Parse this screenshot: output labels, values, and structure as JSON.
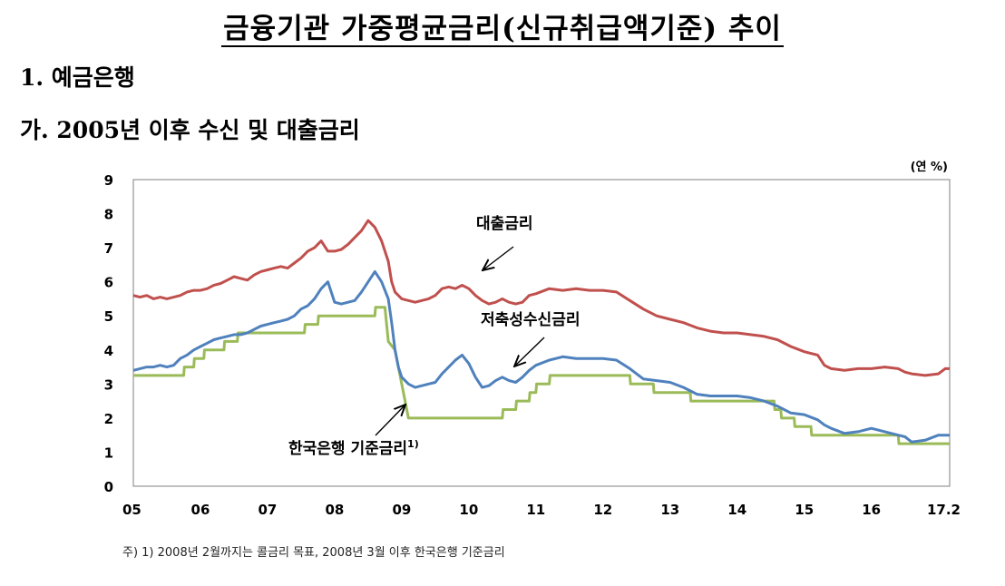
{
  "page": {
    "title": "금융기관 가중평균금리(신규취급액기준) 추이",
    "section": "1. 예금은행",
    "subsection": "가. 2005년 이후 수신 및 대출금리",
    "footnote": "주) 1) 2008년 2월까지는 콜금리 목표, 2008년 3월 이후 한국은행 기준금리"
  },
  "chart_data": {
    "type": "line",
    "unit": "(연 %)",
    "x_tick_labels": [
      "05",
      "06",
      "07",
      "08",
      "09",
      "10",
      "11",
      "12",
      "13",
      "14",
      "15",
      "16",
      "17.2"
    ],
    "y_ticks": [
      0,
      1,
      2,
      3,
      4,
      5,
      6,
      7,
      8,
      9
    ],
    "ylim": [
      0,
      9
    ],
    "xlim": [
      2005.0,
      2017.167
    ],
    "grid": false,
    "annotations": [
      {
        "text": "대출금리",
        "series": "대출금리"
      },
      {
        "text": "저축성수신금리",
        "series": "저축성수신금리"
      },
      {
        "text": "한국은행 기준금리1)",
        "series": "한국은행 기준금리"
      }
    ],
    "series": [
      {
        "name": "대출금리",
        "color": "#c0504d",
        "x": [
          2005.0,
          2005.1,
          2005.2,
          2005.3,
          2005.4,
          2005.5,
          2005.6,
          2005.7,
          2005.8,
          2005.9,
          2006.0,
          2006.1,
          2006.2,
          2006.3,
          2006.4,
          2006.5,
          2006.6,
          2006.7,
          2006.8,
          2006.9,
          2007.0,
          2007.1,
          2007.2,
          2007.3,
          2007.4,
          2007.5,
          2007.6,
          2007.7,
          2007.8,
          2007.9,
          2008.0,
          2008.1,
          2008.2,
          2008.3,
          2008.4,
          2008.5,
          2008.6,
          2008.7,
          2008.8,
          2008.85,
          2008.9,
          2009.0,
          2009.1,
          2009.2,
          2009.3,
          2009.4,
          2009.5,
          2009.6,
          2009.7,
          2009.8,
          2009.9,
          2010.0,
          2010.1,
          2010.2,
          2010.3,
          2010.4,
          2010.5,
          2010.6,
          2010.7,
          2010.8,
          2010.9,
          2011.0,
          2011.2,
          2011.4,
          2011.6,
          2011.8,
          2012.0,
          2012.2,
          2012.4,
          2012.6,
          2012.8,
          2013.0,
          2013.2,
          2013.4,
          2013.6,
          2013.8,
          2014.0,
          2014.2,
          2014.4,
          2014.6,
          2014.8,
          2015.0,
          2015.2,
          2015.3,
          2015.4,
          2015.6,
          2015.8,
          2016.0,
          2016.2,
          2016.4,
          2016.5,
          2016.6,
          2016.8,
          2017.0,
          2017.1,
          2017.167
        ],
        "values": [
          5.6,
          5.55,
          5.6,
          5.5,
          5.55,
          5.5,
          5.55,
          5.6,
          5.7,
          5.75,
          5.75,
          5.8,
          5.9,
          5.95,
          6.05,
          6.15,
          6.1,
          6.05,
          6.2,
          6.3,
          6.35,
          6.4,
          6.45,
          6.4,
          6.55,
          6.7,
          6.9,
          7.0,
          7.2,
          6.9,
          6.9,
          6.95,
          7.1,
          7.3,
          7.5,
          7.8,
          7.6,
          7.2,
          6.6,
          6.0,
          5.7,
          5.5,
          5.45,
          5.4,
          5.45,
          5.5,
          5.6,
          5.8,
          5.85,
          5.8,
          5.9,
          5.8,
          5.6,
          5.45,
          5.35,
          5.4,
          5.5,
          5.4,
          5.35,
          5.4,
          5.6,
          5.65,
          5.8,
          5.75,
          5.8,
          5.75,
          5.75,
          5.7,
          5.45,
          5.2,
          5.0,
          4.9,
          4.8,
          4.65,
          4.55,
          4.5,
          4.5,
          4.45,
          4.4,
          4.3,
          4.1,
          3.95,
          3.85,
          3.55,
          3.45,
          3.4,
          3.45,
          3.45,
          3.5,
          3.45,
          3.35,
          3.3,
          3.25,
          3.3,
          3.45,
          3.45
        ]
      },
      {
        "name": "저축성수신금리",
        "color": "#4f81bd",
        "x": [
          2005.0,
          2005.1,
          2005.2,
          2005.3,
          2005.4,
          2005.5,
          2005.6,
          2005.7,
          2005.8,
          2005.9,
          2006.0,
          2006.1,
          2006.2,
          2006.3,
          2006.4,
          2006.5,
          2006.6,
          2006.7,
          2006.8,
          2006.9,
          2007.0,
          2007.1,
          2007.2,
          2007.3,
          2007.4,
          2007.5,
          2007.6,
          2007.7,
          2007.8,
          2007.9,
          2008.0,
          2008.1,
          2008.2,
          2008.3,
          2008.4,
          2008.5,
          2008.6,
          2008.7,
          2008.8,
          2008.85,
          2008.9,
          2008.95,
          2009.0,
          2009.1,
          2009.2,
          2009.3,
          2009.4,
          2009.5,
          2009.6,
          2009.7,
          2009.8,
          2009.9,
          2010.0,
          2010.1,
          2010.2,
          2010.3,
          2010.4,
          2010.5,
          2010.6,
          2010.7,
          2010.8,
          2010.9,
          2011.0,
          2011.2,
          2011.4,
          2011.6,
          2011.8,
          2012.0,
          2012.2,
          2012.4,
          2012.6,
          2012.8,
          2013.0,
          2013.2,
          2013.4,
          2013.6,
          2013.8,
          2014.0,
          2014.2,
          2014.4,
          2014.6,
          2014.8,
          2015.0,
          2015.2,
          2015.3,
          2015.4,
          2015.6,
          2015.8,
          2016.0,
          2016.2,
          2016.4,
          2016.5,
          2016.6,
          2016.8,
          2017.0,
          2017.1,
          2017.167
        ],
        "values": [
          3.4,
          3.45,
          3.5,
          3.5,
          3.55,
          3.5,
          3.55,
          3.75,
          3.85,
          4.0,
          4.1,
          4.2,
          4.3,
          4.35,
          4.4,
          4.45,
          4.45,
          4.5,
          4.6,
          4.7,
          4.75,
          4.8,
          4.85,
          4.9,
          5.0,
          5.2,
          5.3,
          5.5,
          5.8,
          6.0,
          5.4,
          5.35,
          5.4,
          5.45,
          5.7,
          6.0,
          6.3,
          6.0,
          5.5,
          4.8,
          4.0,
          3.5,
          3.2,
          3.0,
          2.9,
          2.95,
          3.0,
          3.05,
          3.3,
          3.5,
          3.7,
          3.85,
          3.6,
          3.2,
          2.9,
          2.95,
          3.1,
          3.2,
          3.1,
          3.05,
          3.2,
          3.4,
          3.55,
          3.7,
          3.8,
          3.75,
          3.75,
          3.75,
          3.7,
          3.45,
          3.15,
          3.1,
          3.05,
          2.9,
          2.7,
          2.65,
          2.65,
          2.65,
          2.6,
          2.5,
          2.35,
          2.15,
          2.1,
          1.95,
          1.8,
          1.7,
          1.55,
          1.6,
          1.7,
          1.6,
          1.5,
          1.45,
          1.3,
          1.35,
          1.5,
          1.5,
          1.5
        ]
      },
      {
        "name": "한국은행 기준금리",
        "color": "#9bbb59",
        "x": [
          2005.0,
          2005.75,
          2005.76,
          2005.9,
          2005.91,
          2006.05,
          2006.06,
          2006.35,
          2006.36,
          2006.55,
          2006.56,
          2007.55,
          2007.56,
          2007.75,
          2007.76,
          2008.6,
          2008.61,
          2008.75,
          2008.8,
          2008.9,
          2009.0,
          2009.05,
          2009.1,
          2010.5,
          2010.51,
          2010.7,
          2010.71,
          2010.9,
          2010.91,
          2011.0,
          2011.01,
          2011.2,
          2011.21,
          2011.4,
          2011.41,
          2012.4,
          2012.41,
          2012.75,
          2012.76,
          2013.3,
          2013.31,
          2014.55,
          2014.56,
          2014.65,
          2014.66,
          2014.85,
          2014.86,
          2015.1,
          2015.11,
          2015.4,
          2015.41,
          2016.4,
          2016.41,
          2017.167
        ],
        "values": [
          3.25,
          3.25,
          3.5,
          3.5,
          3.75,
          3.75,
          4.0,
          4.0,
          4.25,
          4.25,
          4.5,
          4.5,
          4.75,
          4.75,
          5.0,
          5.0,
          5.25,
          5.25,
          4.25,
          4.0,
          3.0,
          2.5,
          2.0,
          2.0,
          2.25,
          2.25,
          2.5,
          2.5,
          2.75,
          2.75,
          3.0,
          3.0,
          3.25,
          3.25,
          3.25,
          3.25,
          3.0,
          3.0,
          2.75,
          2.75,
          2.5,
          2.5,
          2.25,
          2.25,
          2.0,
          2.0,
          1.75,
          1.75,
          1.5,
          1.5,
          1.5,
          1.5,
          1.25,
          1.25
        ]
      }
    ]
  }
}
